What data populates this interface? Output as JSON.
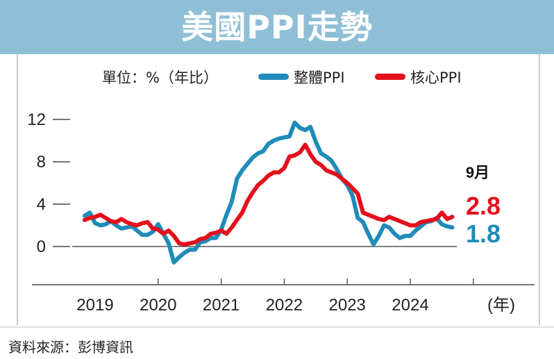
{
  "header": {
    "title": "美國PPI走勢"
  },
  "legend": {
    "unit_label": "單位：%（年比）",
    "items": [
      {
        "label": "整體PPI",
        "color": "#1f8bb8"
      },
      {
        "label": "核心PPI",
        "color": "#e3101e"
      }
    ]
  },
  "source": "資料來源：彭博資訊",
  "chart_data": {
    "type": "line",
    "title": "美國PPI走勢",
    "ylabel": "單位：%（年比）",
    "xlabel": "(年)",
    "ylim": [
      -3,
      13
    ],
    "y_ticks": [
      0,
      4,
      8,
      12
    ],
    "y_tick_labels": [
      "0",
      "4",
      "8",
      "12"
    ],
    "x_year_labels": [
      "2019",
      "2020",
      "2021",
      "2022",
      "2023",
      "2024"
    ],
    "x_unit_label": "(年)",
    "grid": false,
    "legend_position": "top",
    "latest_label": "9月",
    "series": [
      {
        "name": "整體PPI",
        "color": "#1f8bb8",
        "end_label": "1.8",
        "x": [
          "2018-11",
          "2018-12",
          "2019-01",
          "2019-02",
          "2019-03",
          "2019-04",
          "2019-05",
          "2019-06",
          "2019-07",
          "2019-08",
          "2019-09",
          "2019-10",
          "2019-11",
          "2019-12",
          "2020-01",
          "2020-02",
          "2020-03",
          "2020-04",
          "2020-05",
          "2020-06",
          "2020-07",
          "2020-08",
          "2020-09",
          "2020-10",
          "2020-11",
          "2020-12",
          "2021-01",
          "2021-02",
          "2021-03",
          "2021-04",
          "2021-05",
          "2021-06",
          "2021-07",
          "2021-08",
          "2021-09",
          "2021-10",
          "2021-11",
          "2021-12",
          "2022-01",
          "2022-02",
          "2022-03",
          "2022-04",
          "2022-05",
          "2022-06",
          "2022-07",
          "2022-08",
          "2022-09",
          "2022-10",
          "2022-11",
          "2022-12",
          "2023-01",
          "2023-02",
          "2023-03",
          "2023-04",
          "2023-05",
          "2023-06",
          "2023-07",
          "2023-08",
          "2023-09",
          "2023-10",
          "2023-11",
          "2023-12",
          "2024-01",
          "2024-02",
          "2024-03",
          "2024-04",
          "2024-05",
          "2024-06",
          "2024-07",
          "2024-08",
          "2024-09"
        ],
        "values": [
          2.9,
          3.2,
          2.2,
          2.0,
          2.1,
          2.4,
          2.0,
          1.7,
          1.8,
          1.9,
          1.5,
          1.1,
          1.1,
          1.4,
          2.1,
          1.2,
          0.3,
          -1.5,
          -1.0,
          -0.6,
          -0.3,
          -0.3,
          0.4,
          0.5,
          0.8,
          0.8,
          1.6,
          3.0,
          4.2,
          6.4,
          7.2,
          7.8,
          8.4,
          8.8,
          9.0,
          9.7,
          10.0,
          10.2,
          10.3,
          10.4,
          11.7,
          11.2,
          11.0,
          11.3,
          9.9,
          8.8,
          8.5,
          8.1,
          7.3,
          6.4,
          5.8,
          4.8,
          2.7,
          2.3,
          1.2,
          0.2,
          1.0,
          2.0,
          1.8,
          1.2,
          0.8,
          1.0,
          1.0,
          1.5,
          1.9,
          2.3,
          2.4,
          2.7,
          2.1,
          1.9,
          1.8
        ]
      },
      {
        "name": "核心PPI",
        "color": "#e3101e",
        "end_label": "2.8",
        "x": [
          "2018-11",
          "2018-12",
          "2019-01",
          "2019-02",
          "2019-03",
          "2019-04",
          "2019-05",
          "2019-06",
          "2019-07",
          "2019-08",
          "2019-09",
          "2019-10",
          "2019-11",
          "2019-12",
          "2020-01",
          "2020-02",
          "2020-03",
          "2020-04",
          "2020-05",
          "2020-06",
          "2020-07",
          "2020-08",
          "2020-09",
          "2020-10",
          "2020-11",
          "2020-12",
          "2021-01",
          "2021-02",
          "2021-03",
          "2021-04",
          "2021-05",
          "2021-06",
          "2021-07",
          "2021-08",
          "2021-09",
          "2021-10",
          "2021-11",
          "2021-12",
          "2022-01",
          "2022-02",
          "2022-03",
          "2022-04",
          "2022-05",
          "2022-06",
          "2022-07",
          "2022-08",
          "2022-09",
          "2022-10",
          "2022-11",
          "2022-12",
          "2023-01",
          "2023-02",
          "2023-03",
          "2023-04",
          "2023-05",
          "2023-06",
          "2023-07",
          "2023-08",
          "2023-09",
          "2023-10",
          "2023-11",
          "2023-12",
          "2024-01",
          "2024-02",
          "2024-03",
          "2024-04",
          "2024-05",
          "2024-06",
          "2024-07",
          "2024-08",
          "2024-09"
        ],
        "values": [
          2.5,
          2.7,
          2.8,
          3.0,
          2.7,
          2.4,
          2.3,
          2.6,
          2.3,
          2.1,
          2.0,
          2.2,
          2.3,
          1.7,
          1.6,
          1.2,
          1.5,
          1.0,
          0.3,
          0.2,
          0.3,
          0.4,
          0.7,
          0.8,
          1.2,
          1.3,
          1.5,
          1.2,
          1.8,
          2.5,
          3.2,
          4.3,
          5.1,
          5.8,
          6.2,
          6.7,
          7.0,
          7.0,
          7.4,
          8.5,
          8.6,
          8.9,
          9.6,
          8.7,
          8.0,
          7.7,
          7.2,
          7.0,
          6.8,
          6.4,
          6.0,
          5.5,
          5.0,
          3.2,
          3.0,
          2.8,
          2.6,
          2.5,
          2.8,
          2.6,
          2.4,
          2.2,
          2.0,
          2.0,
          2.3,
          2.4,
          2.5,
          2.6,
          3.2,
          2.6,
          2.8
        ]
      }
    ]
  }
}
